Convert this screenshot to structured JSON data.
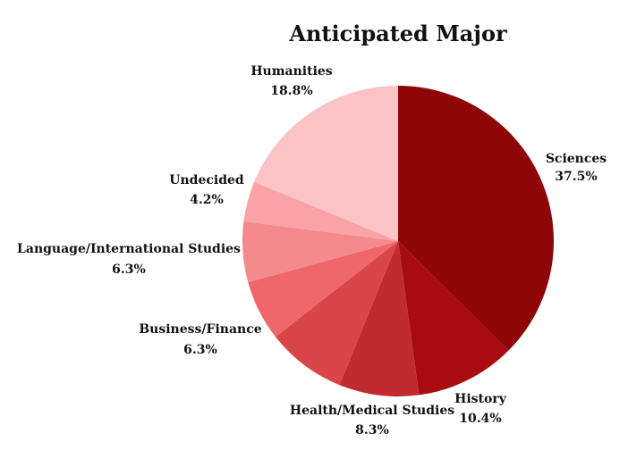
{
  "chart_data": {
    "type": "pie",
    "title": "Anticipated Major",
    "start": "12 o'clock",
    "direction": "clockwise",
    "slices": [
      {
        "label": "Sciences",
        "value": 37.5,
        "value_label": "37.5%",
        "color": "#8f0609"
      },
      {
        "label": "History",
        "value": 10.4,
        "value_label": "10.4%",
        "color": "#a80b10"
      },
      {
        "label": "Health/Medical Studies",
        "value": 8.3,
        "value_label": "8.3%",
        "color": "#c02a30"
      },
      {
        "label": "",
        "value": 8.3,
        "value_label": "",
        "color": "#d84649"
      },
      {
        "label": "Business/Finance",
        "value": 6.3,
        "value_label": "6.3%",
        "color": "#ef676b"
      },
      {
        "label": "Language/International Studies",
        "value": 6.3,
        "value_label": "6.3%",
        "color": "#f58a8e"
      },
      {
        "label": "Undecided",
        "value": 4.2,
        "value_label": "4.2%",
        "color": "#f9a3a6"
      },
      {
        "label": "Humanities",
        "value": 18.8,
        "value_label": "18.8%",
        "color": "#fbc3c6"
      }
    ]
  }
}
